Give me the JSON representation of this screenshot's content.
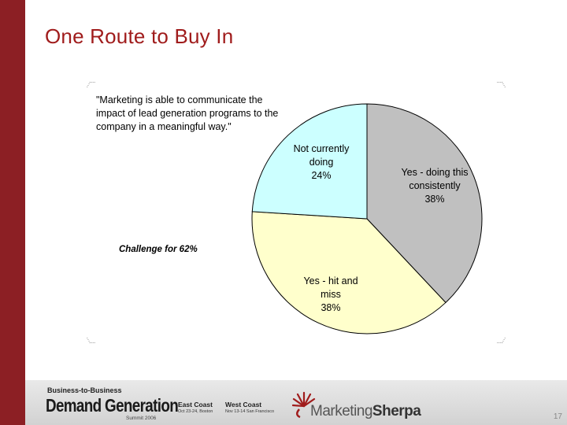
{
  "slide": {
    "title": "One Route to Buy In",
    "page_number": "17"
  },
  "colors": {
    "accent_bar": "#8c1f24",
    "title": "#a01c1c"
  },
  "chart_data": {
    "type": "pie",
    "title": "\"Marketing is able to communicate the impact of lead generation programs to the company in a meaningful way.\"",
    "title_lines": [
      "\"Marketing is able to communicate the",
      "impact of lead generation programs to the",
      "company in a meaningful way.\""
    ],
    "annotation": "Challenge for 62%",
    "start_angle_deg": 0,
    "direction": "clockwise",
    "slices": [
      {
        "label_lines": [
          "Yes - doing this",
          "consistently",
          "38%"
        ],
        "value": 38,
        "color": "#c0c0c0"
      },
      {
        "label_lines": [
          "Yes - hit and",
          "miss",
          "38%"
        ],
        "value": 38,
        "color": "#ffffcc"
      },
      {
        "label_lines": [
          "Not currently",
          "doing",
          "24%"
        ],
        "value": 24,
        "color": "#ccffff"
      }
    ]
  },
  "footer": {
    "b2b": "Business-to-Business",
    "demand": "Demand Generation",
    "summit": "Summit 2006",
    "east_coast": "East Coast",
    "east_dates": "Oct 23-24, Boston",
    "west_coast": "West Coast",
    "west_dates": "Nov 13-14 San Francisco",
    "sherpa_part1": "Marketing",
    "sherpa_part2": "Sherpa",
    "sherpa_icon": "sunburst-icon"
  }
}
